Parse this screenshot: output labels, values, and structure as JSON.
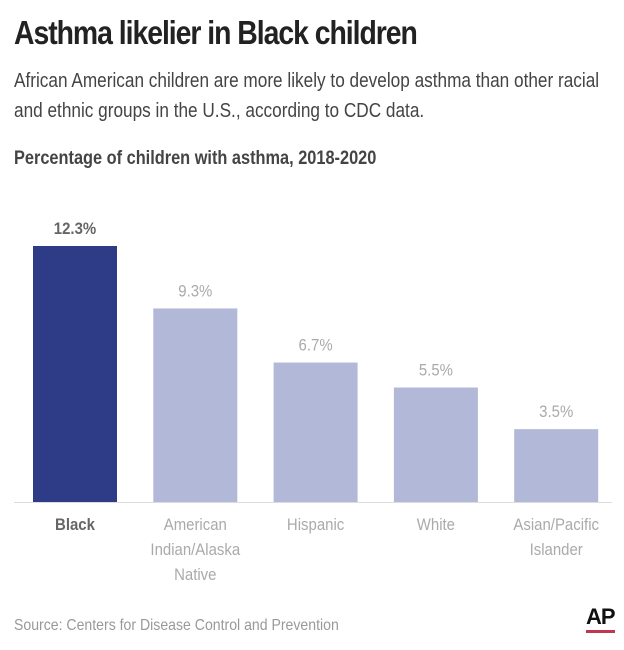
{
  "title": "Asthma likelier in Black children",
  "subtitle": "African American children are more likely to develop asthma than other racial and ethnic groups in the U.S., according to CDC data.",
  "source": "Source: Centers for Disease Control and Prevention",
  "logo": "AP",
  "chart_data": {
    "type": "bar",
    "title": "Percentage of children with asthma, 2018-2020",
    "categories": [
      "Black",
      "American Indian/Alaska Native",
      "Hispanic",
      "White",
      "Asian/Pacific Islander"
    ],
    "category_lines": [
      [
        "Black"
      ],
      [
        "American",
        "Indian/Alaska",
        "Native"
      ],
      [
        "Hispanic"
      ],
      [
        "White"
      ],
      [
        "Asian/Pacific",
        "Islander"
      ]
    ],
    "values": [
      12.3,
      9.3,
      6.7,
      5.5,
      3.5
    ],
    "labels": [
      "12.3%",
      "9.3%",
      "6.7%",
      "5.5%",
      "3.5%"
    ],
    "highlight_index": 0,
    "colors": {
      "highlight": "#2e3b87",
      "default": "#b2b9d8",
      "highlight_text": "#666666",
      "default_text": "#aaaaaa"
    },
    "ylim": [
      0,
      12.3
    ],
    "grid": false
  }
}
